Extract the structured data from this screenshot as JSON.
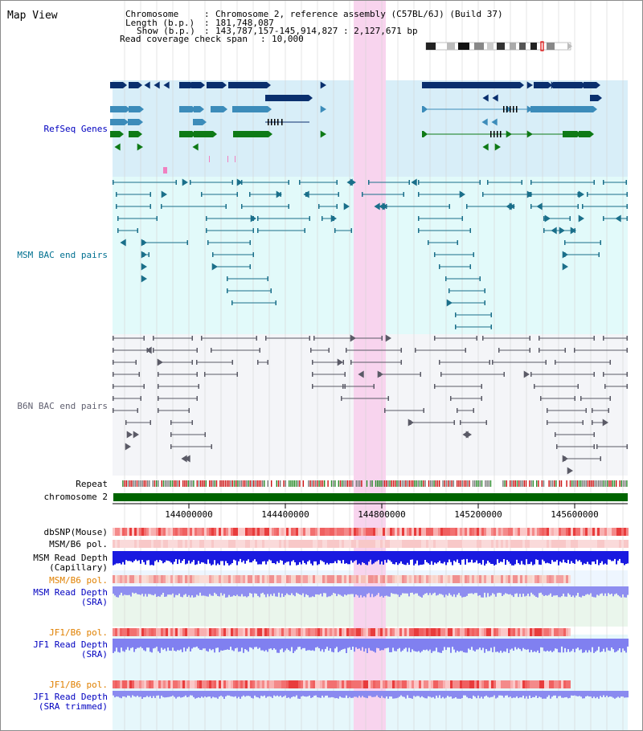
{
  "page_title": "Map View",
  "info": {
    "chromosome_label": "Chromosome",
    "chromosome_value": "Chromosome 2, reference assembly (C57BL/6J) (Build 37)",
    "length_label": "Length (b.p.)",
    "length_value": "181,748,087",
    "show_label": "Show (b.p.)",
    "show_value": "143,787,157-145,914,827 : 2,127,671 bp",
    "coverage_label": "Read coverage check span",
    "coverage_value": "10,000"
  },
  "tracks": {
    "refseq": "RefSeq Genes",
    "msm_bac": "MSM BAC end pairs",
    "b6n_bac": "B6N BAC end pairs",
    "repeat": "Repeat",
    "chromosome": "chromosome 2",
    "dbsnp": "dbSNP(Mouse)",
    "msm_pol_1": "MSM/B6 pol.",
    "msm_depth_cap_1": "MSM Read Depth",
    "msm_depth_cap_2": "(Capillary)",
    "msm_pol_2": "MSM/B6 pol.",
    "msm_depth_sra_1": "MSM Read Depth",
    "msm_depth_sra_2": "(SRA)",
    "jf1_pol_1": "JF1/B6 pol.",
    "jf1_depth_sra_1": "JF1 Read Depth",
    "jf1_depth_sra_2": "(SRA)",
    "jf1_pol_2": "JF1/B6 pol.",
    "jf1_depth_trim_1": "JF1 Read Depth",
    "jf1_depth_trim_2": "(SRA trimmed)"
  },
  "ruler_ticks": [
    "144000000",
    "144400000",
    "144800000",
    "145200000",
    "145600000"
  ],
  "colors": {
    "refseq_bg": "#d8eef8",
    "bac_bg": "#e2fafa",
    "b6n_bg": "#f4f5f8",
    "highlight": "#f8d4ee",
    "chromosome_bar": "#006400",
    "refseq_label": "#0000c0",
    "msm_label": "#007090",
    "b6n_label": "#606070",
    "pol_orange_label": "#e08000",
    "depth_label": "#0000c0"
  }
}
